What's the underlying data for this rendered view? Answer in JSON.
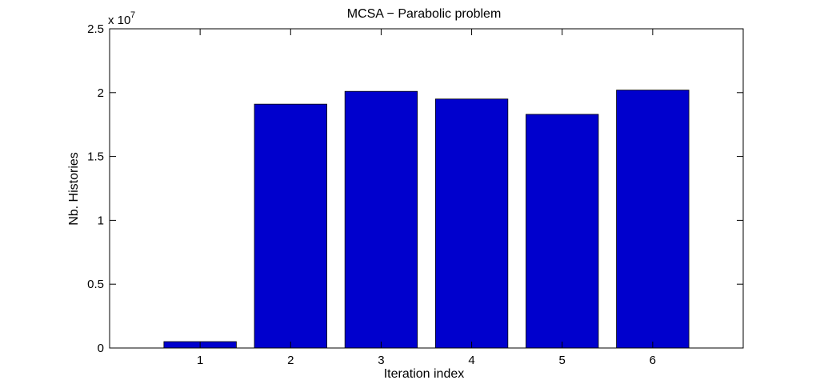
{
  "chart_data": {
    "type": "bar",
    "title": "MCSA − Parabolic problem",
    "xlabel": "Iteration index",
    "ylabel": "Nb. Histories",
    "categories": [
      "1",
      "2",
      "3",
      "4",
      "5",
      "6"
    ],
    "values": [
      500000,
      19100000,
      20100000,
      19500000,
      18300000,
      20200000
    ],
    "ylim": [
      0,
      25000000
    ],
    "xlim": [
      0,
      7
    ],
    "yticks": [
      0,
      5000000,
      10000000,
      15000000,
      20000000,
      25000000
    ],
    "ytick_labels": [
      "0",
      "0.5",
      "1",
      "1.5",
      "2",
      "2.5"
    ],
    "y_multiplier": "x 10",
    "y_multiplier_exponent": "7",
    "bar_color": "#0000cd",
    "grid": false,
    "legend": "none"
  }
}
